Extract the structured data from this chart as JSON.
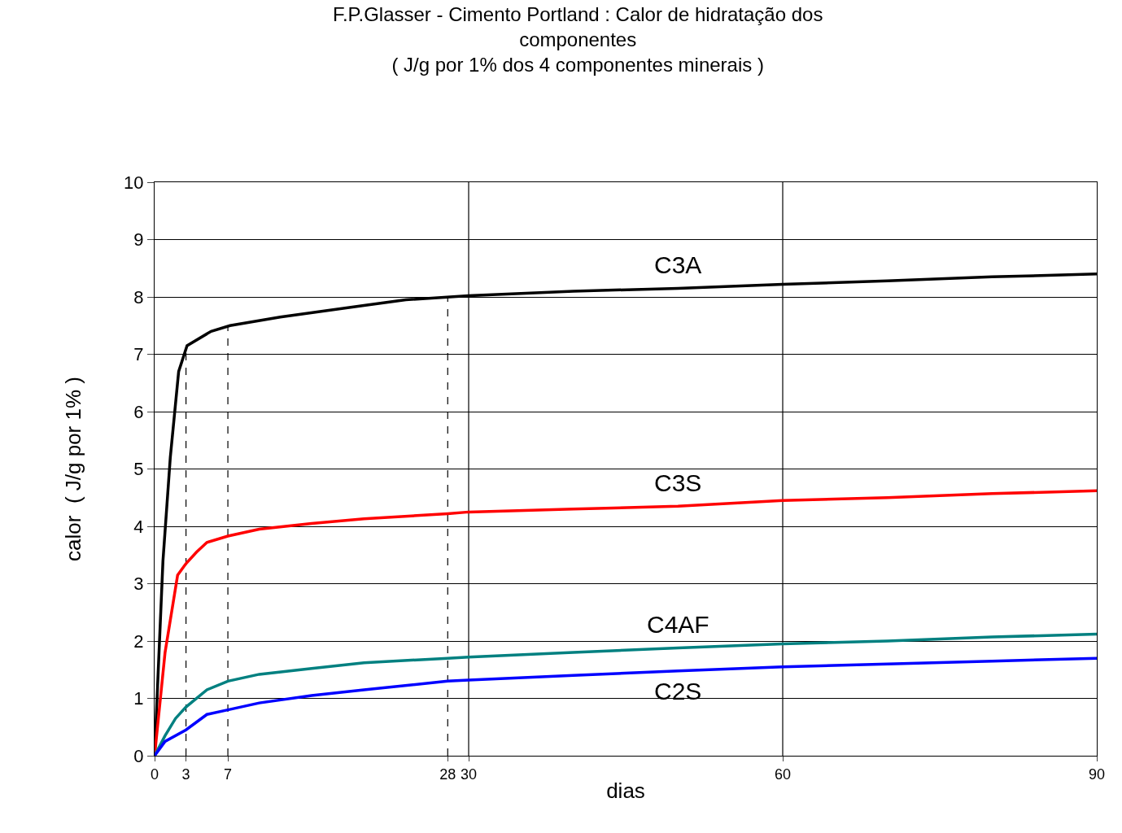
{
  "chart_data": {
    "type": "line",
    "title": "F.P.Glasser - Cimento Portland : Calor de hidratação dos componentes",
    "subtitle": "( J/g por 1% dos 4 componentes minerais )",
    "xlabel": "dias",
    "ylabel": "calor  ( J/g por 1% )",
    "xlim": [
      0,
      90
    ],
    "xticks": [
      0,
      3,
      7,
      28,
      30,
      60,
      90
    ],
    "ylim": [
      0,
      10
    ],
    "yticks": [
      0,
      1,
      2,
      3,
      4,
      5,
      6,
      7,
      8,
      9,
      10
    ],
    "grid": "y",
    "legend": false,
    "marker": "none",
    "line_style": "solid",
    "ref_lines": [
      {
        "axis": "x",
        "value": 3,
        "line_style": "dashed",
        "color": "#000000"
      },
      {
        "axis": "x",
        "value": 7,
        "line_style": "dashed",
        "color": "#000000"
      },
      {
        "axis": "x",
        "value": 28,
        "line_style": "dashed",
        "color": "#000000"
      },
      {
        "axis": "x",
        "value": 30,
        "line_style": "solid",
        "color": "#000000"
      },
      {
        "axis": "x",
        "value": 60,
        "line_style": "solid",
        "color": "#000000"
      }
    ],
    "series": [
      {
        "name": "C3A",
        "color": "#000000",
        "x": [
          0,
          0.8,
          1.5,
          2.3,
          3.1,
          5.4,
          7.2,
          12,
          20,
          24,
          30,
          40,
          50,
          60,
          70,
          80,
          90
        ],
        "values": [
          0,
          3.4,
          5.2,
          6.7,
          7.15,
          7.4,
          7.5,
          7.65,
          7.85,
          7.95,
          8.02,
          8.1,
          8.15,
          8.22,
          8.28,
          8.35,
          8.4
        ]
      },
      {
        "name": "C3S",
        "color": "#ff0000",
        "x": [
          0,
          1,
          2.2,
          3,
          4,
          5,
          7,
          10,
          15,
          20,
          28,
          30,
          40,
          50,
          60,
          70,
          80,
          90
        ],
        "values": [
          0,
          1.8,
          3.15,
          3.35,
          3.55,
          3.72,
          3.83,
          3.95,
          4.05,
          4.13,
          4.22,
          4.25,
          4.3,
          4.35,
          4.45,
          4.5,
          4.57,
          4.62
        ]
      },
      {
        "name": "C4AF",
        "color": "#008080",
        "x": [
          0,
          1,
          2,
          3,
          5,
          7,
          10,
          15,
          20,
          28,
          30,
          40,
          50,
          60,
          70,
          80,
          90
        ],
        "values": [
          0,
          0.35,
          0.65,
          0.85,
          1.15,
          1.3,
          1.42,
          1.52,
          1.62,
          1.7,
          1.72,
          1.8,
          1.88,
          1.95,
          2.0,
          2.07,
          2.12
        ]
      },
      {
        "name": "C2S",
        "color": "#0000ff",
        "x": [
          0,
          1,
          3,
          5,
          7,
          10,
          15,
          20,
          28,
          30,
          40,
          50,
          60,
          70,
          80,
          90
        ],
        "values": [
          0,
          0.25,
          0.45,
          0.72,
          0.8,
          0.92,
          1.05,
          1.15,
          1.3,
          1.32,
          1.4,
          1.48,
          1.55,
          1.6,
          1.65,
          1.7
        ]
      }
    ]
  }
}
